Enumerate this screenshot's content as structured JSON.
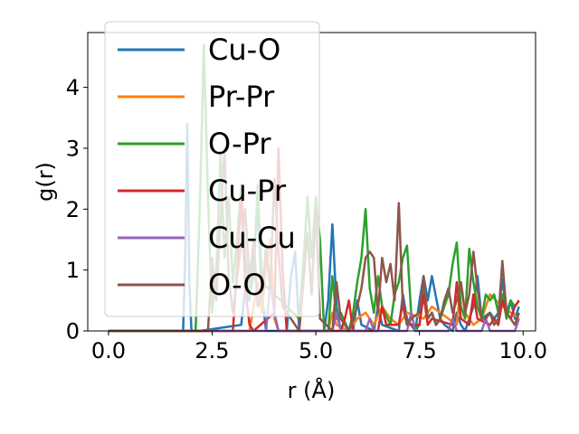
{
  "chart_data": {
    "type": "line",
    "title": "",
    "xlabel": "r (Å)",
    "ylabel": "g(r)",
    "xlim": [
      -0.5,
      10.3
    ],
    "ylim": [
      0,
      4.9
    ],
    "xticks": [
      0.0,
      2.5,
      5.0,
      7.5,
      10.0
    ],
    "xtick_labels": [
      "0.0",
      "2.5",
      "5.0",
      "7.5",
      "10.0"
    ],
    "yticks": [
      0,
      1,
      2,
      3,
      4
    ],
    "ytick_labels": [
      "0",
      "1",
      "2",
      "3",
      "4"
    ],
    "grid": false,
    "legend_position": "upper-left",
    "series": [
      {
        "name": "Cu-O",
        "color": "#1f77b4",
        "x": [
          0.0,
          1.8,
          1.85,
          1.9,
          1.95,
          2.0,
          2.1,
          2.2,
          3.2,
          3.3,
          3.4,
          3.5,
          3.6,
          3.7,
          3.8,
          4.3,
          4.4,
          4.5,
          4.6,
          5.2,
          5.3,
          5.4,
          5.5,
          5.6,
          5.9,
          6.0,
          6.1,
          6.4,
          6.5,
          6.6,
          7.0,
          7.1,
          7.2,
          7.4,
          7.5,
          7.6,
          7.7,
          7.8,
          8.0,
          8.1,
          8.3,
          8.4,
          8.5,
          8.6,
          8.8,
          8.9,
          9.0,
          9.2,
          9.3,
          9.4,
          9.5,
          9.6,
          9.7,
          9.8,
          9.9
        ],
        "values": [
          0,
          0,
          1.2,
          3.4,
          0.8,
          0,
          0,
          0,
          0.1,
          0.7,
          0.5,
          1.2,
          1.95,
          0.6,
          0,
          0,
          0.9,
          1.3,
          0,
          0,
          0.5,
          1.75,
          0.4,
          0,
          0,
          0.5,
          0.1,
          0,
          0.4,
          0.1,
          0,
          0.6,
          0.2,
          0,
          0.5,
          0.9,
          0.5,
          0.9,
          0.2,
          0.1,
          0,
          0.3,
          0.1,
          0,
          0.4,
          0.9,
          0.2,
          0.3,
          0.2,
          0.3,
          0.85,
          0.3,
          0.5,
          0.2,
          0.4
        ]
      },
      {
        "name": "Pr-Pr",
        "color": "#ff7f0e",
        "x": [
          0.0,
          3.4,
          3.5,
          3.6,
          3.7,
          3.8,
          3.9,
          4.0,
          4.1,
          4.2,
          5.0,
          5.3,
          5.4,
          5.5,
          5.8,
          6.0,
          6.2,
          6.4,
          6.6,
          6.8,
          7.0,
          7.2,
          7.6,
          7.8,
          8.2,
          8.4,
          8.5,
          8.6,
          8.8,
          9.0,
          9.2,
          9.5,
          9.7,
          9.9
        ],
        "values": [
          0,
          0,
          0.4,
          0.8,
          0.3,
          1.0,
          1.5,
          0.2,
          0,
          0,
          0,
          0,
          0.3,
          0.1,
          0,
          0.2,
          0.3,
          0.1,
          0.4,
          0.2,
          0.1,
          0.3,
          0.2,
          0.4,
          0.2,
          0.1,
          0.8,
          0.3,
          0.1,
          0.2,
          0.6,
          0.4,
          0.3,
          0.2
        ]
      },
      {
        "name": "O-Pr",
        "color": "#2ca02c",
        "x": [
          0.0,
          2.1,
          2.2,
          2.3,
          2.4,
          2.5,
          2.6,
          2.7,
          2.8,
          2.9,
          3.0,
          3.1,
          3.2,
          3.3,
          3.4,
          3.5,
          3.6,
          3.7,
          4.6,
          4.7,
          4.8,
          4.9,
          5.0,
          5.1,
          5.2,
          5.3,
          5.4,
          5.5,
          5.6,
          5.8,
          5.9,
          6.0,
          6.1,
          6.2,
          6.3,
          6.4,
          6.5,
          6.6,
          6.8,
          6.9,
          7.0,
          7.1,
          7.2,
          7.3,
          7.4,
          7.5,
          7.6,
          7.7,
          7.8,
          7.9,
          8.0,
          8.2,
          8.3,
          8.4,
          8.5,
          8.6,
          8.7,
          8.8,
          8.9,
          9.0,
          9.1,
          9.2,
          9.3,
          9.4,
          9.5,
          9.6,
          9.7,
          9.8,
          9.9
        ],
        "values": [
          0,
          0,
          2.0,
          4.7,
          2.2,
          0.3,
          1.0,
          2.9,
          1.2,
          2.2,
          0.8,
          1.5,
          2.4,
          1.2,
          0.6,
          0.9,
          2.4,
          0.8,
          0.2,
          1.1,
          2.2,
          1.2,
          2.2,
          1.5,
          0,
          0,
          0.9,
          0.2,
          0.3,
          0,
          0.3,
          0.8,
          1.2,
          2.0,
          0.7,
          0.3,
          0.9,
          0.4,
          0.1,
          0.6,
          0.8,
          1.2,
          1.4,
          0.3,
          0,
          0.1,
          0.8,
          0.2,
          0.3,
          0.1,
          0.2,
          0.6,
          1.1,
          1.45,
          0.4,
          0.2,
          1.35,
          0.8,
          0.4,
          0.2,
          0.6,
          0.5,
          0.6,
          0.3,
          0.6,
          0.2,
          0.5,
          0.4,
          0.5
        ]
      },
      {
        "name": "Cu-Pr",
        "color": "#d62728",
        "x": [
          0.0,
          3.0,
          3.1,
          3.2,
          3.3,
          3.4,
          3.5,
          4.0,
          4.1,
          4.2,
          4.3,
          5.6,
          5.7,
          5.8,
          5.9,
          6.0,
          6.5,
          6.6,
          6.7,
          7.0,
          7.1,
          7.2,
          7.5,
          7.6,
          7.7,
          7.8,
          8.3,
          8.4,
          8.5,
          8.7,
          8.8,
          8.9,
          9.2,
          9.3,
          9.4,
          9.5,
          9.6,
          9.7,
          9.8,
          9.9
        ],
        "values": [
          0,
          0,
          1.0,
          2.2,
          0.7,
          0.1,
          0,
          0.3,
          3.0,
          1.0,
          0,
          0,
          0.2,
          0.5,
          0,
          0,
          0,
          0.4,
          0.1,
          0.1,
          0.5,
          0.1,
          0.1,
          0.6,
          0.1,
          0.2,
          0.1,
          0.8,
          0.2,
          0.1,
          0.6,
          0.2,
          0.1,
          0.2,
          0.1,
          0.5,
          0.3,
          0.2,
          0.4,
          0.5
        ]
      },
      {
        "name": "Cu-Cu",
        "color": "#9467bd",
        "x": [
          0.0,
          3.8,
          3.9,
          4.0,
          4.1,
          5.4,
          5.5,
          5.6,
          6.2,
          6.3,
          6.4,
          7.2,
          7.3,
          7.4,
          8.2,
          8.3,
          8.4,
          9.0,
          9.1,
          9.2,
          9.8,
          9.9
        ],
        "values": [
          0,
          0,
          0.8,
          0.3,
          0,
          0,
          0.3,
          0,
          0,
          0.2,
          0,
          0,
          0.3,
          0,
          0,
          0.2,
          0,
          0,
          0.2,
          0,
          0,
          0.2
        ]
      },
      {
        "name": "O-O",
        "color": "#8c564b",
        "x": [
          0.0,
          2.4,
          2.5,
          2.6,
          2.7,
          2.8,
          2.9,
          3.0,
          3.3,
          3.4,
          3.5,
          3.6,
          3.7,
          3.8,
          3.9,
          4.0,
          4.1,
          4.2,
          4.6,
          4.7,
          4.8,
          4.9,
          5.0,
          5.1,
          5.4,
          5.5,
          5.6,
          5.8,
          5.9,
          6.0,
          6.1,
          6.2,
          6.3,
          6.4,
          6.5,
          6.6,
          6.7,
          6.8,
          6.9,
          7.0,
          7.1,
          7.2,
          7.3,
          7.5,
          7.6,
          7.7,
          7.8,
          7.9,
          8.0,
          8.1,
          8.2,
          8.3,
          8.4,
          8.5,
          8.6,
          8.7,
          8.8,
          8.9,
          9.0,
          9.1,
          9.2,
          9.3,
          9.4,
          9.5,
          9.6,
          9.7,
          9.8,
          9.9
        ],
        "values": [
          0,
          0,
          1.2,
          0.5,
          1.8,
          3.0,
          0.9,
          0.3,
          2.0,
          0.8,
          1.5,
          0.4,
          0.6,
          1.4,
          0.7,
          2.5,
          1.3,
          0.4,
          0,
          0.8,
          1.6,
          0.6,
          2.0,
          0.2,
          0,
          0.8,
          0.2,
          0,
          0.2,
          0.4,
          0.7,
          1.2,
          1.3,
          1.2,
          0.3,
          1.2,
          0.8,
          1.1,
          0.5,
          2.1,
          0.4,
          0.1,
          0.2,
          0.3,
          0.9,
          0.2,
          0.3,
          0.1,
          0.2,
          0.5,
          0.7,
          0.3,
          0.5,
          0.8,
          0.3,
          0.6,
          1.3,
          0.7,
          0.2,
          0.2,
          0.3,
          0.1,
          0.2,
          1.15,
          0.3,
          0.2,
          0.1,
          0.3
        ]
      }
    ]
  }
}
